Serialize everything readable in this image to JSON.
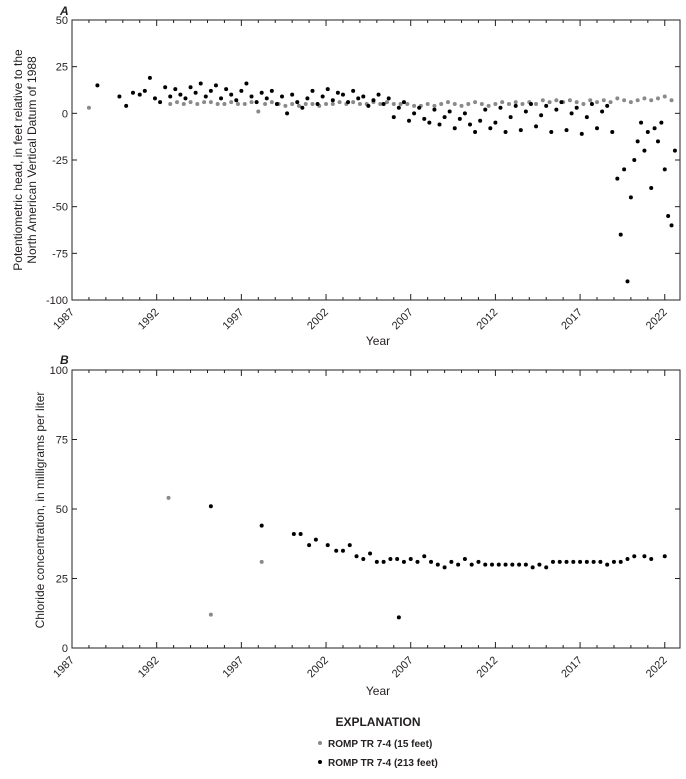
{
  "chart_data": [
    {
      "panel_label": "A",
      "type": "scatter",
      "xlabel": "Year",
      "ylabel_line1": "Potentiometric head, in feet relative to the",
      "ylabel_line2": "North American Vertical Datum of 1988",
      "xlim": [
        1987,
        2022.9
      ],
      "ylim": [
        -100,
        50
      ],
      "xticks": [
        "1987",
        "1992",
        "1997",
        "2002",
        "2007",
        "2012",
        "2017",
        "2022"
      ],
      "yticks": [
        "50",
        "25",
        "0",
        "-25",
        "-50",
        "-75",
        "-100"
      ],
      "series": [
        {
          "name": "ROMP TR 7-4 (15 feet)",
          "color": "#8a8a8a",
          "x": [
            1988.0,
            1992.8,
            1993.2,
            1993.6,
            1994.0,
            1994.4,
            1994.8,
            1995.2,
            1995.6,
            1996.0,
            1996.4,
            1996.8,
            1997.2,
            1997.6,
            1998.0,
            1998.4,
            1998.8,
            1999.2,
            1999.6,
            2000.0,
            2000.4,
            2000.8,
            2001.2,
            2001.6,
            2002.0,
            2002.4,
            2002.8,
            2003.2,
            2003.6,
            2004.0,
            2004.4,
            2004.8,
            2005.2,
            2005.6,
            2006.0,
            2006.4,
            2006.8,
            2007.2,
            2007.6,
            2008.0,
            2008.4,
            2008.8,
            2009.2,
            2009.6,
            2010.0,
            2010.4,
            2010.8,
            2011.2,
            2011.6,
            2012.0,
            2012.4,
            2012.8,
            2013.2,
            2013.6,
            2014.0,
            2014.4,
            2014.8,
            2015.2,
            2015.6,
            2016.0,
            2016.4,
            2016.8,
            2017.2,
            2017.6,
            2018.0,
            2018.4,
            2018.8,
            2019.2,
            2019.6,
            2020.0,
            2020.4,
            2020.8,
            2021.2,
            2021.6,
            2022.0,
            2022.4
          ],
          "y": [
            3,
            5,
            6,
            5,
            6,
            5,
            6,
            6,
            5,
            5,
            6,
            5,
            5,
            6,
            1,
            5,
            6,
            5,
            4,
            5,
            4,
            5,
            5,
            4,
            5,
            5,
            6,
            5,
            6,
            5,
            5,
            6,
            5,
            6,
            5,
            5,
            5,
            4,
            4,
            5,
            4,
            5,
            6,
            5,
            4,
            5,
            6,
            5,
            4,
            5,
            6,
            5,
            6,
            5,
            6,
            5,
            7,
            6,
            7,
            6,
            7,
            6,
            5,
            7,
            6,
            7,
            6,
            8,
            7,
            6,
            7,
            8,
            7,
            8,
            9,
            7
          ]
        },
        {
          "name": "ROMP TR 7-4 (213 feet)",
          "color": "#000000",
          "x": [
            1988.5,
            1989.8,
            1990.2,
            1990.6,
            1991.0,
            1991.3,
            1991.6,
            1991.9,
            1992.2,
            1992.5,
            1992.8,
            1993.1,
            1993.4,
            1993.7,
            1994.0,
            1994.3,
            1994.6,
            1994.9,
            1995.2,
            1995.5,
            1995.8,
            1996.1,
            1996.4,
            1996.7,
            1997.0,
            1997.3,
            1997.6,
            1997.9,
            1998.2,
            1998.5,
            1998.8,
            1999.1,
            1999.4,
            1999.7,
            2000.0,
            2000.3,
            2000.6,
            2000.9,
            2001.2,
            2001.5,
            2001.8,
            2002.1,
            2002.4,
            2002.7,
            2003.0,
            2003.3,
            2003.6,
            2003.9,
            2004.2,
            2004.5,
            2004.8,
            2005.1,
            2005.4,
            2005.7,
            2006.0,
            2006.3,
            2006.6,
            2006.9,
            2007.2,
            2007.5,
            2007.8,
            2008.1,
            2008.4,
            2008.7,
            2009.0,
            2009.3,
            2009.6,
            2009.9,
            2010.2,
            2010.5,
            2010.8,
            2011.1,
            2011.4,
            2011.7,
            2012.0,
            2012.3,
            2012.6,
            2012.9,
            2013.2,
            2013.5,
            2013.8,
            2014.1,
            2014.4,
            2014.7,
            2015.0,
            2015.3,
            2015.6,
            2015.9,
            2016.2,
            2016.5,
            2016.8,
            2017.1,
            2017.4,
            2017.7,
            2018.0,
            2018.3,
            2018.6,
            2018.9,
            2019.2,
            2019.4,
            2019.6,
            2019.8,
            2020.0,
            2020.2,
            2020.4,
            2020.6,
            2020.8,
            2021.0,
            2021.2,
            2021.4,
            2021.6,
            2021.8,
            2022.0,
            2022.2,
            2022.4,
            2022.6
          ],
          "y": [
            15,
            9,
            4,
            11,
            10,
            12,
            19,
            8,
            6,
            14,
            9,
            13,
            10,
            8,
            14,
            11,
            16,
            9,
            12,
            15,
            8,
            13,
            10,
            7,
            12,
            16,
            9,
            6,
            11,
            8,
            12,
            5,
            9,
            0,
            10,
            6,
            3,
            8,
            12,
            5,
            9,
            13,
            7,
            11,
            10,
            6,
            12,
            8,
            9,
            4,
            7,
            10,
            5,
            8,
            -2,
            3,
            6,
            -4,
            0,
            3,
            -3,
            -5,
            2,
            -6,
            -2,
            1,
            -8,
            -3,
            0,
            -6,
            -10,
            -4,
            2,
            -8,
            -5,
            3,
            -10,
            -2,
            4,
            -9,
            1,
            5,
            -7,
            -1,
            4,
            -10,
            2,
            6,
            -9,
            0,
            3,
            -11,
            -2,
            5,
            -8,
            1,
            4,
            -10,
            -35,
            -65,
            -30,
            -90,
            -45,
            -25,
            -15,
            -5,
            -20,
            -10,
            -40,
            -8,
            -15,
            -5,
            -30,
            -55,
            -60,
            -20
          ]
        }
      ]
    },
    {
      "panel_label": "B",
      "type": "scatter",
      "xlabel": "Year",
      "ylabel": "Chloride concentration, in milligrams per liter",
      "xlim": [
        1987,
        2022.9
      ],
      "ylim": [
        0,
        100
      ],
      "xticks": [
        "1987",
        "1992",
        "1997",
        "2002",
        "2007",
        "2012",
        "2017",
        "2022"
      ],
      "yticks": [
        "100",
        "75",
        "50",
        "25",
        "0"
      ],
      "series": [
        {
          "name": "ROMP TR 7-4 (15 feet)",
          "color": "#8a8a8a",
          "x": [
            1992.7,
            1995.2,
            1998.2
          ],
          "y": [
            54,
            12,
            31
          ]
        },
        {
          "name": "ROMP TR 7-4 (213 feet)",
          "color": "#000000",
          "x": [
            1995.2,
            1998.2,
            2000.1,
            2000.5,
            2001.0,
            2001.4,
            2002.1,
            2002.6,
            2003.0,
            2003.4,
            2003.8,
            2004.2,
            2004.6,
            2005.0,
            2005.4,
            2005.8,
            2006.2,
            2006.6,
            2007.0,
            2007.4,
            2007.8,
            2008.2,
            2008.6,
            2009.0,
            2009.4,
            2009.8,
            2010.2,
            2010.6,
            2011.0,
            2011.4,
            2011.8,
            2012.2,
            2012.6,
            2013.0,
            2013.4,
            2013.8,
            2014.2,
            2014.6,
            2015.0,
            2015.4,
            2015.8,
            2016.2,
            2016.6,
            2017.0,
            2017.4,
            2017.8,
            2018.2,
            2018.6,
            2019.0,
            2019.4,
            2019.8,
            2020.2,
            2020.8,
            2021.2,
            2022.0,
            2006.3
          ],
          "y": [
            51,
            44,
            41,
            41,
            37,
            39,
            37,
            35,
            35,
            37,
            33,
            32,
            34,
            31,
            31,
            32,
            32,
            31,
            32,
            31,
            33,
            31,
            30,
            29,
            31,
            30,
            32,
            30,
            31,
            30,
            30,
            30,
            30,
            30,
            30,
            30,
            29,
            30,
            29,
            31,
            31,
            31,
            31,
            31,
            31,
            31,
            31,
            30,
            31,
            31,
            32,
            33,
            33,
            32,
            33,
            11
          ]
        }
      ]
    }
  ],
  "legend": {
    "title": "EXPLANATION",
    "items": [
      {
        "label": "ROMP TR 7-4 (15 feet)",
        "color": "#8a8a8a"
      },
      {
        "label": "ROMP TR 7-4 (213 feet)",
        "color": "#000000"
      }
    ]
  }
}
